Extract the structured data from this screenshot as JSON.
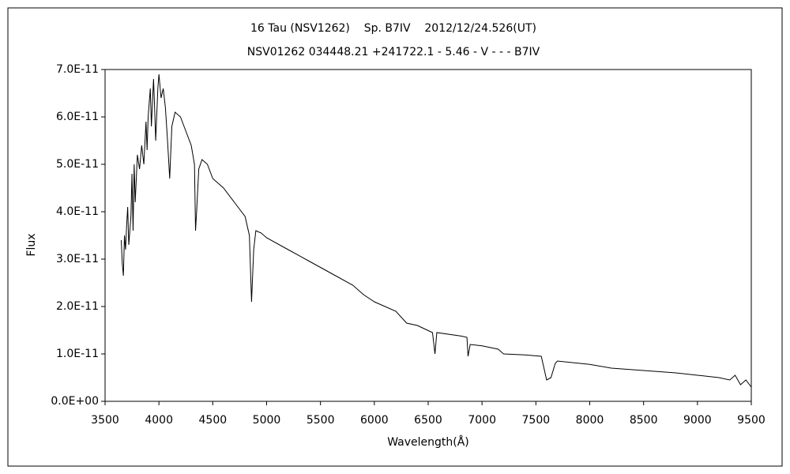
{
  "chart_data": {
    "type": "line",
    "title": "16 Tau (NSV1262)    Sp. B7IV    2012/12/24.526(UT)",
    "subtitle": "NSV01262 034448.21 +241722.1 - 5.46 - V - - - B7IV",
    "xlabel": "Wavelength(Å)",
    "ylabel": "Flux",
    "color": "#000000",
    "xlim": [
      3500,
      9500
    ],
    "ylim": [
      0,
      7e-11
    ],
    "xticks": [
      3500,
      4000,
      4500,
      5000,
      5500,
      6000,
      6500,
      7000,
      7500,
      8000,
      8500,
      9000,
      9500
    ],
    "yticks": [
      {
        "value": 0,
        "label": "0.0E+00"
      },
      {
        "value": 1e-11,
        "label": "1.0E-11"
      },
      {
        "value": 2e-11,
        "label": "2.0E-11"
      },
      {
        "value": 3e-11,
        "label": "3.0E-11"
      },
      {
        "value": 4e-11,
        "label": "4.0E-11"
      },
      {
        "value": 5e-11,
        "label": "5.0E-11"
      },
      {
        "value": 6e-11,
        "label": "6.0E-11"
      },
      {
        "value": 7e-11,
        "label": "7.0E-11"
      }
    ],
    "x": [
      3650,
      3660,
      3670,
      3680,
      3690,
      3700,
      3710,
      3720,
      3740,
      3750,
      3760,
      3770,
      3780,
      3800,
      3820,
      3840,
      3860,
      3880,
      3890,
      3900,
      3920,
      3930,
      3950,
      3960,
      3970,
      3990,
      4000,
      4020,
      4040,
      4060,
      4080,
      4100,
      4120,
      4150,
      4200,
      4250,
      4300,
      4330,
      4340,
      4350,
      4370,
      4400,
      4450,
      4500,
      4600,
      4700,
      4800,
      4840,
      4860,
      4880,
      4900,
      4950,
      5000,
      5200,
      5400,
      5600,
      5800,
      5900,
      6000,
      6200,
      6300,
      6400,
      6540,
      6563,
      6580,
      6800,
      6860,
      6870,
      6890,
      7000,
      7150,
      7200,
      7400,
      7550,
      7600,
      7640,
      7680,
      7700,
      8000,
      8200,
      8500,
      8800,
      9000,
      9200,
      9300,
      9350,
      9400,
      9450,
      9500
    ],
    "values": [
      3.4e-11,
      2.9e-11,
      2.65e-11,
      3.5e-11,
      3.2e-11,
      3.7e-11,
      4.1e-11,
      3.3e-11,
      3.9e-11,
      4.8e-11,
      3.6e-11,
      5e-11,
      4.2e-11,
      5.2e-11,
      4.9e-11,
      5.4e-11,
      5e-11,
      5.9e-11,
      5.3e-11,
      6e-11,
      6.6e-11,
      5.8e-11,
      6.8e-11,
      6.2e-11,
      5.5e-11,
      6.6e-11,
      6.9e-11,
      6.4e-11,
      6.6e-11,
      6.2e-11,
      5.5e-11,
      4.7e-11,
      5.8e-11,
      6.1e-11,
      6e-11,
      5.7e-11,
      5.4e-11,
      5e-11,
      3.6e-11,
      4e-11,
      4.9e-11,
      5.1e-11,
      5e-11,
      4.7e-11,
      4.5e-11,
      4.2e-11,
      3.9e-11,
      3.5e-11,
      2.1e-11,
      3.2e-11,
      3.6e-11,
      3.55e-11,
      3.45e-11,
      3.2e-11,
      2.95e-11,
      2.7e-11,
      2.45e-11,
      2.25e-11,
      2.1e-11,
      1.9e-11,
      1.65e-11,
      1.6e-11,
      1.45e-11,
      1e-11,
      1.45e-11,
      1.38e-11,
      1.35e-11,
      9.5e-12,
      1.2e-11,
      1.17e-11,
      1.1e-11,
      1e-11,
      9.8e-12,
      9.5e-12,
      4.5e-12,
      5e-12,
      8e-12,
      8.5e-12,
      7.8e-12,
      7e-12,
      6.5e-12,
      6e-12,
      5.5e-12,
      5e-12,
      4.5e-12,
      5.5e-12,
      3.5e-12,
      4.5e-12,
      3e-12
    ]
  }
}
